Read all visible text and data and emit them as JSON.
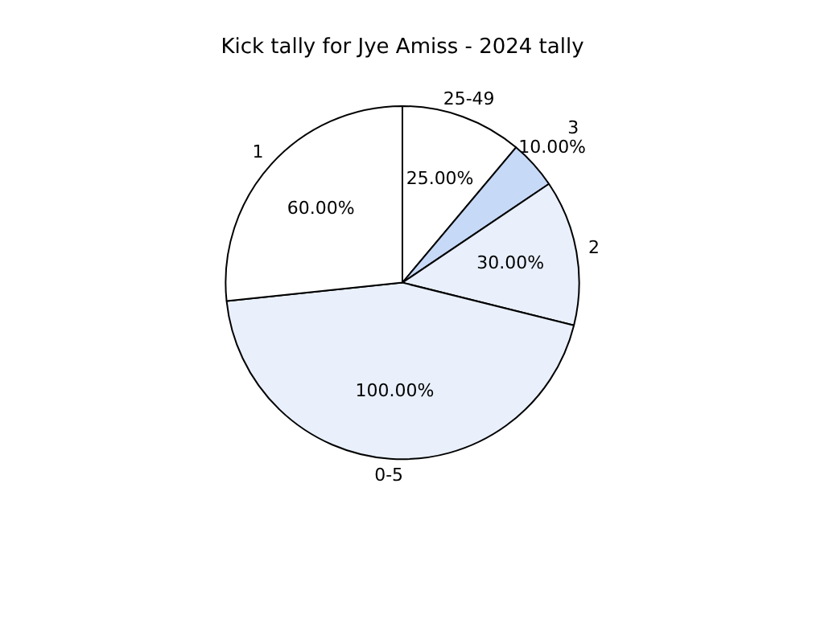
{
  "chart_data": {
    "type": "pie",
    "title": "Kick tally for Jye Amiss - 2024 tally",
    "categories": [
      "25-49",
      "3",
      "2",
      "0-5",
      "1"
    ],
    "values": [
      25,
      10,
      30,
      100,
      60
    ],
    "value_labels": [
      "25.00%",
      "10.00%",
      "30.00%",
      "100.00%",
      "60.00%"
    ],
    "colors": [
      "#ffffff",
      "#c6d9f7",
      "#e9f0fc",
      "#e9f0fc",
      "#ffffff"
    ],
    "legend": false
  }
}
